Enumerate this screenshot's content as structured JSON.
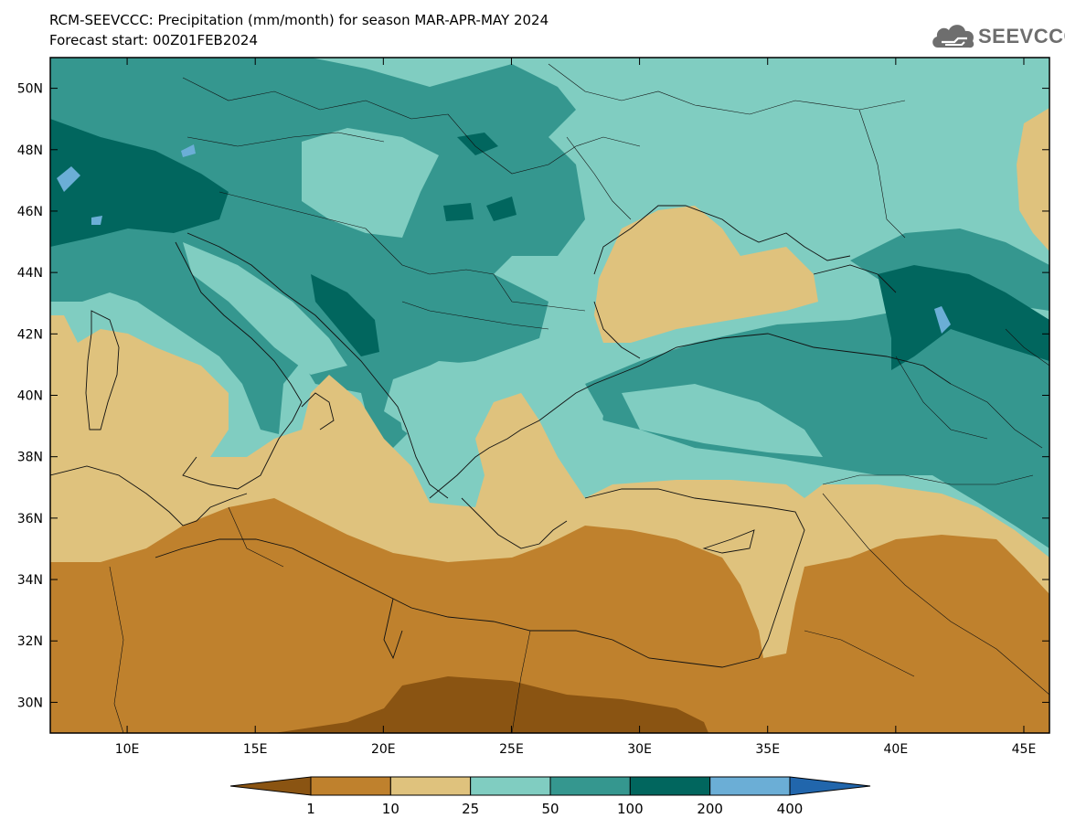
{
  "header": {
    "title_line1": "RCM-SEEVCCC: Precipitation (mm/month) for season MAR-APR-MAY 2024",
    "title_line2": "Forecast start: 00Z01FEB2024"
  },
  "logo": {
    "text": "SEEVCCC",
    "icon": "cloud-icon",
    "color": "#6e6e6e"
  },
  "map": {
    "lon_range": [
      7,
      46
    ],
    "lat_range": [
      29,
      51
    ],
    "lon_ticks": [
      {
        "value": 10,
        "label": "10E"
      },
      {
        "value": 15,
        "label": "15E"
      },
      {
        "value": 20,
        "label": "20E"
      },
      {
        "value": 25,
        "label": "25E"
      },
      {
        "value": 30,
        "label": "30E"
      },
      {
        "value": 35,
        "label": "35E"
      },
      {
        "value": 40,
        "label": "40E"
      },
      {
        "value": 45,
        "label": "45E"
      }
    ],
    "lat_ticks": [
      {
        "value": 30,
        "label": "30N"
      },
      {
        "value": 32,
        "label": "32N"
      },
      {
        "value": 34,
        "label": "34N"
      },
      {
        "value": 36,
        "label": "36N"
      },
      {
        "value": 38,
        "label": "38N"
      },
      {
        "value": 40,
        "label": "40N"
      },
      {
        "value": 42,
        "label": "42N"
      },
      {
        "value": 44,
        "label": "44N"
      },
      {
        "value": 46,
        "label": "46N"
      },
      {
        "value": 48,
        "label": "48N"
      },
      {
        "value": 50,
        "label": "50N"
      }
    ]
  },
  "colorbar": {
    "bins": [
      {
        "color": "#8a5412",
        "label": ""
      },
      {
        "color": "#bf812d",
        "label": "1"
      },
      {
        "color": "#dfc27d",
        "label": "10"
      },
      {
        "color": "#80cdc1",
        "label": "25"
      },
      {
        "color": "#35978f",
        "label": "50"
      },
      {
        "color": "#01665e",
        "label": "100"
      },
      {
        "color": "#6baed6",
        "label": "200"
      },
      {
        "color": "#2166ac",
        "label": "400"
      }
    ]
  }
}
